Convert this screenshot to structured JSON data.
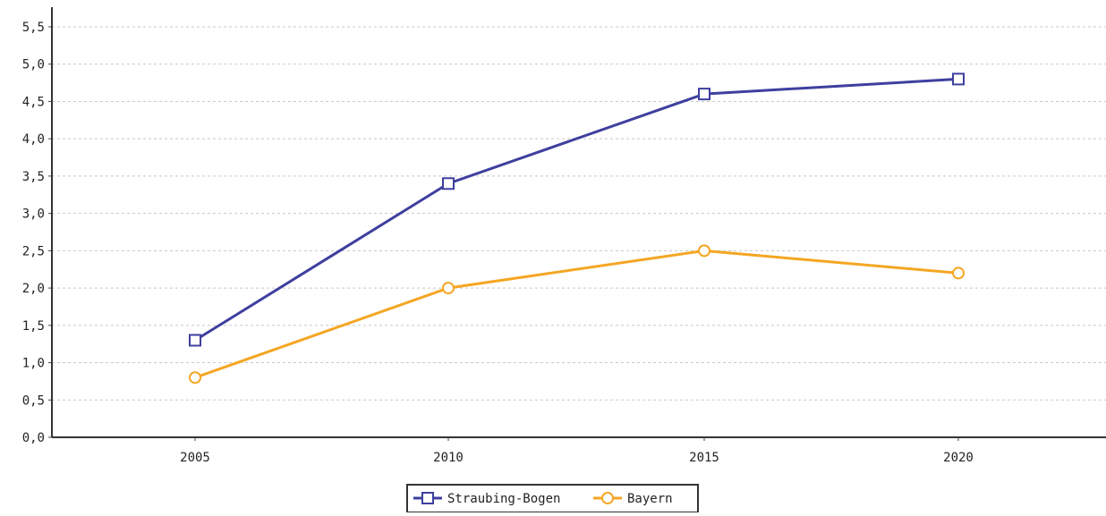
{
  "chart_data": {
    "type": "line",
    "title": "",
    "xlabel": "",
    "ylabel": "",
    "categories": [
      "2005",
      "2010",
      "2015",
      "2020"
    ],
    "ylim": [
      0,
      5.5
    ],
    "yticks": [
      "0,0",
      "0,5",
      "1,0",
      "1,5",
      "2,0",
      "2,5",
      "3,0",
      "3,5",
      "4,0",
      "4,5",
      "5,0",
      "5,5"
    ],
    "grid": true,
    "legend_position": "bottom-center",
    "series": [
      {
        "name": "Straubing-Bogen",
        "values": [
          1.3,
          3.4,
          4.6,
          4.8
        ],
        "color": "#3f3f9f",
        "marker": "square"
      },
      {
        "name": "Bayern",
        "values": [
          0.8,
          2.0,
          2.5,
          2.2
        ],
        "color": "#f5a623",
        "marker": "circle"
      }
    ]
  }
}
